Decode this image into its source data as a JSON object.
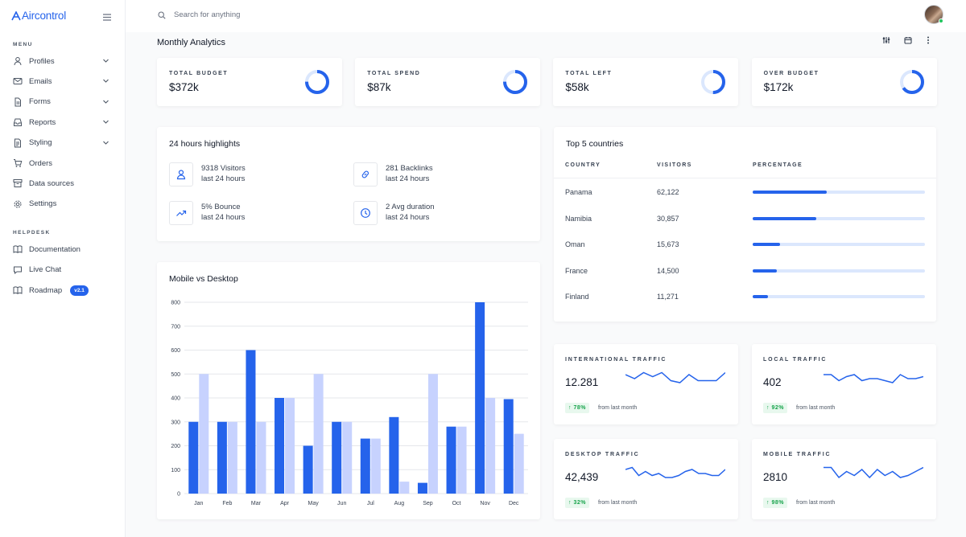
{
  "app": {
    "logo": "Aircontrol"
  },
  "sidebar": {
    "menu_heading": "MENU",
    "items": [
      {
        "label": "Profiles",
        "icon": "user-icon",
        "chevron": true
      },
      {
        "label": "Emails",
        "icon": "mail-icon",
        "chevron": true
      },
      {
        "label": "Forms",
        "icon": "file-icon",
        "chevron": true
      },
      {
        "label": "Reports",
        "icon": "inbox-icon",
        "chevron": true
      },
      {
        "label": "Styling",
        "icon": "document-icon",
        "chevron": true
      },
      {
        "label": "Orders",
        "icon": "cart-icon",
        "chevron": false
      },
      {
        "label": "Data sources",
        "icon": "archive-icon",
        "chevron": false
      },
      {
        "label": "Settings",
        "icon": "gear-icon",
        "chevron": false
      }
    ],
    "helpdesk_heading": "HELPDESK",
    "help_items": [
      {
        "label": "Documentation",
        "icon": "book-icon"
      },
      {
        "label": "Live Chat",
        "icon": "chat-icon"
      },
      {
        "label": "Roadmap",
        "icon": "book-icon",
        "badge": "v2.1"
      }
    ]
  },
  "search": {
    "placeholder": "Search for anything"
  },
  "page": {
    "title": "Monthly Analytics"
  },
  "colors": {
    "accent": "#2563eb",
    "accent_light": "#c7d2fe",
    "track": "#dbe7fd",
    "positive": "#16a34a"
  },
  "stats": [
    {
      "label": "TOTAL BUDGET",
      "value": "$372k",
      "ring": 0.75
    },
    {
      "label": "TOTAL SPEND",
      "value": "$87k",
      "ring": 0.75
    },
    {
      "label": "TOTAL LEFT",
      "value": "$58k",
      "ring": 0.5
    },
    {
      "label": "OVER BUDGET",
      "value": "$172k",
      "ring": 0.65
    }
  ],
  "highlights": {
    "title": "24 hours highlights",
    "items": [
      {
        "title": "9318 Visitors",
        "sub": "last 24 hours",
        "icon": "user-icon"
      },
      {
        "title": "281 Backlinks",
        "sub": "last 24 hours",
        "icon": "link-icon"
      },
      {
        "title": "5% Bounce",
        "sub": "last 24 hours",
        "icon": "trending-up-icon"
      },
      {
        "title": "2 Avg duration",
        "sub": "last 24 hours",
        "icon": "clock-icon"
      }
    ]
  },
  "countries": {
    "title": "Top 5 countries",
    "headers": [
      "COUNTRY",
      "VISITORS",
      "PERCENTAGE"
    ],
    "rows": [
      {
        "country": "Panama",
        "visitors": "62,122",
        "pct": 0.43
      },
      {
        "country": "Namibia",
        "visitors": "30,857",
        "pct": 0.37
      },
      {
        "country": "Oman",
        "visitors": "15,673",
        "pct": 0.16
      },
      {
        "country": "France",
        "visitors": "14,500",
        "pct": 0.14
      },
      {
        "country": "Finland",
        "visitors": "11,271",
        "pct": 0.09
      }
    ]
  },
  "traffic": [
    {
      "label": "INTERNATIONAL TRAFFIC",
      "value": "12.281",
      "change": "↑ 78%",
      "from": "from last month",
      "spark": [
        6,
        4,
        7,
        5,
        7,
        3,
        2,
        6,
        3,
        3,
        3,
        7
      ]
    },
    {
      "label": "LOCAL TRAFFIC",
      "value": "402",
      "change": "↑ 92%",
      "from": "from last month",
      "spark": [
        6,
        6,
        3,
        5,
        6,
        3,
        4,
        4,
        3,
        2,
        6,
        4,
        4,
        5
      ]
    },
    {
      "label": "DESKTOP TRAFFIC",
      "value": "42,439",
      "change": "↑ 32%",
      "from": "from last month",
      "spark": [
        6,
        7,
        3,
        5,
        3,
        4,
        2,
        2,
        3,
        5,
        6,
        4,
        4,
        3,
        3,
        6
      ]
    },
    {
      "label": "MOBILE TRAFFIC",
      "value": "2810",
      "change": "↑ 98%",
      "from": "from last month",
      "spark": [
        7,
        7,
        2,
        5,
        3,
        6,
        2,
        6,
        3,
        5,
        2,
        3,
        5,
        7
      ]
    }
  ],
  "chart_data": {
    "type": "bar",
    "title": "Mobile vs Desktop",
    "categories": [
      "Jan",
      "Feb",
      "Mar",
      "Apr",
      "May",
      "Jun",
      "Jul",
      "Aug",
      "Sep",
      "Oct",
      "Nov",
      "Dec"
    ],
    "series": [
      {
        "name": "Mobile",
        "color": "#2563eb",
        "values": [
          300,
          300,
          600,
          400,
          200,
          300,
          230,
          320,
          45,
          280,
          800,
          395
        ]
      },
      {
        "name": "Desktop",
        "color": "#c7d2fe",
        "values": [
          500,
          300,
          300,
          400,
          500,
          300,
          230,
          50,
          500,
          280,
          400,
          250
        ]
      }
    ],
    "yticks": [
      0,
      100,
      200,
      300,
      400,
      500,
      600,
      700,
      800
    ],
    "ylim": [
      0,
      800
    ],
    "grid": true
  }
}
